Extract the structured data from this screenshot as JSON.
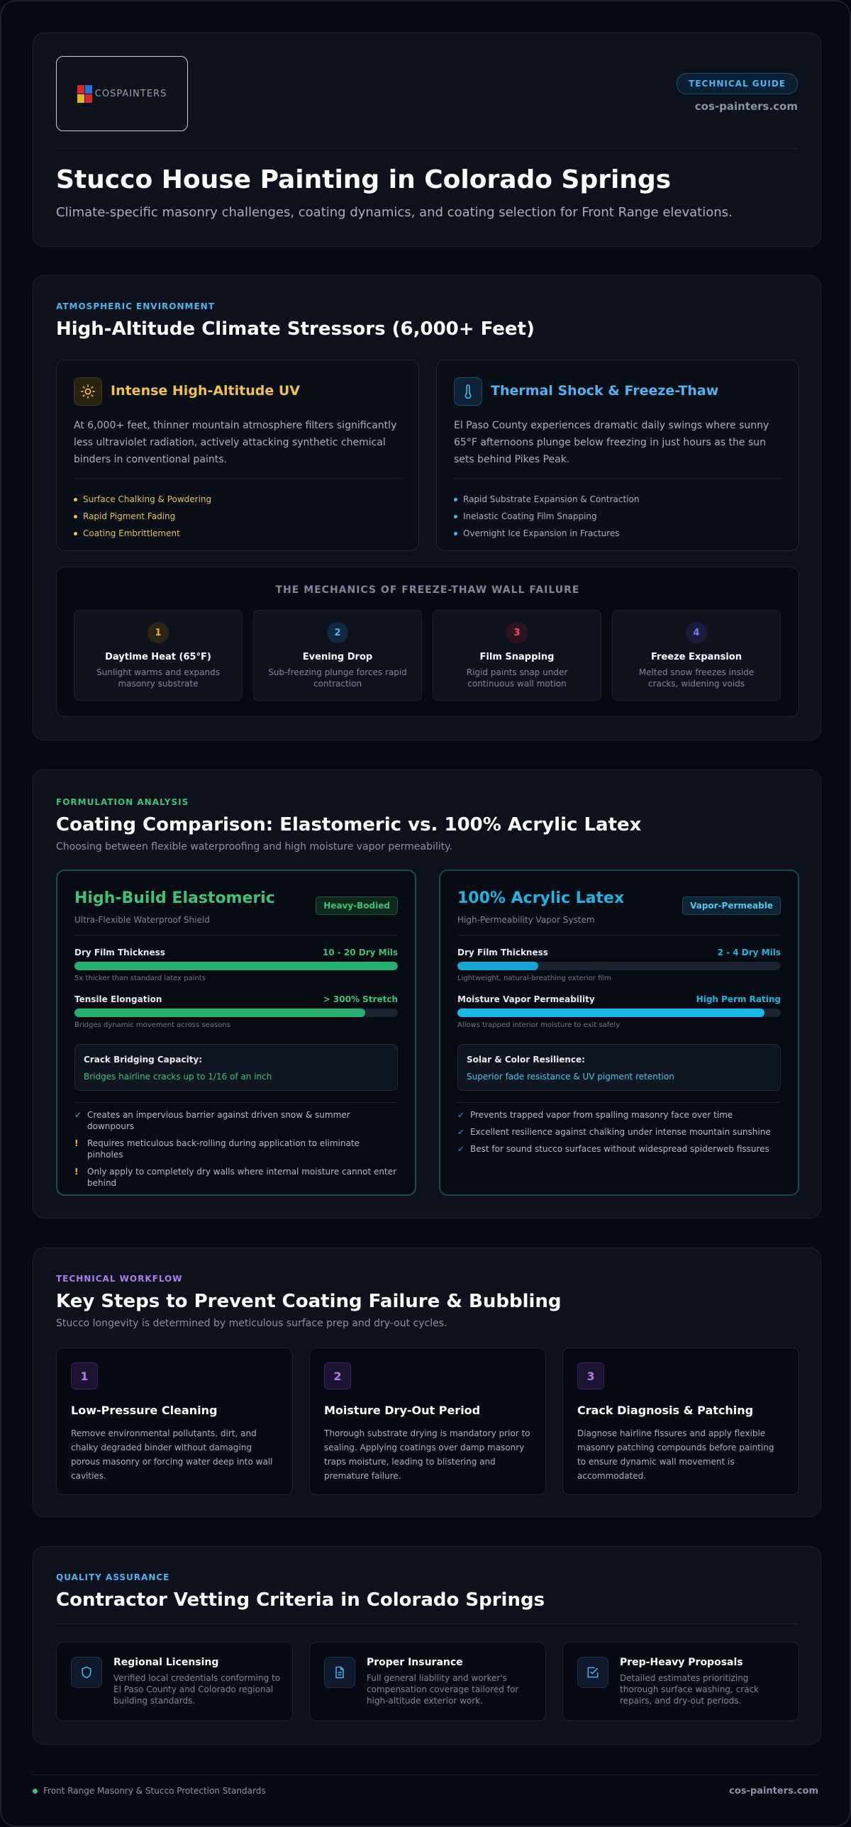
{
  "colors": {
    "uv": "#f2c14e",
    "thermal": "#4fb3f0",
    "elastomeric": "#3ec27a",
    "acrylic": "#1fb5e0",
    "workflow": "#b07cf0",
    "quality": "#4fb3f0",
    "warn": "#f2c14e"
  },
  "header": {
    "logo_text": "COSPAINTERS",
    "pill": "TECHNICAL GUIDE",
    "domain": "cos-painters.com",
    "title": "Stucco House Painting in Colorado Springs",
    "subtitle": "Climate-specific masonry challenges, coating dynamics, and coating selection for Front Range elevations."
  },
  "climate": {
    "eyebrow": "ATMOSPHERIC ENVIRONMENT",
    "title": "High-Altitude Climate Stressors (6,000+ Feet)",
    "uv": {
      "icon": "sun-icon",
      "title": "Intense High-Altitude UV",
      "desc": "At 6,000+ feet, thinner mountain atmosphere filters significantly less ultraviolet radiation, actively attacking synthetic chemical binders in conventional paints.",
      "bullets": [
        "Surface Chalking & Powdering",
        "Rapid Pigment Fading",
        "Coating Embrittlement"
      ]
    },
    "thermal": {
      "icon": "thermometer-icon",
      "title": "Thermal Shock & Freeze-Thaw",
      "desc": "El Paso County experiences dramatic daily swings where sunny 65°F afternoons plunge below freezing in just hours as the sun sets behind Pikes Peak.",
      "bullets": [
        "Rapid Substrate Expansion & Contraction",
        "Inelastic Coating Film Snapping",
        "Overnight Ice Expansion in Fractures"
      ]
    },
    "mechanics": {
      "title": "THE MECHANICS OF FREEZE-THAW WALL FAILURE",
      "steps": [
        {
          "num": "1",
          "title": "Daytime Heat (65°F)",
          "desc": "Sunlight warms and expands masonry substrate"
        },
        {
          "num": "2",
          "title": "Evening Drop",
          "desc": "Sub-freezing plunge forces rapid contraction"
        },
        {
          "num": "3",
          "title": "Film Snapping",
          "desc": "Rigid paints snap under continuous wall motion"
        },
        {
          "num": "4",
          "title": "Freeze Expansion",
          "desc": "Melted snow freezes inside cracks, widening voids"
        }
      ]
    }
  },
  "coatings": {
    "eyebrow": "FORMULATION ANALYSIS",
    "title": "Coating Comparison: Elastomeric vs. 100% Acrylic Latex",
    "subtitle": "Choosing between flexible waterproofing and high moisture vapor permeability.",
    "elastomeric": {
      "title": "High-Build Elastomeric",
      "subtitle": "Ultra-Flexible Waterproof Shield",
      "badge": "Heavy-Bodied",
      "m1": {
        "label": "Dry Film Thickness",
        "value": "10 - 20 Dry Mils",
        "note": "5x thicker than standard latex paints",
        "fill": 1.0
      },
      "m2": {
        "label": "Tensile Elongation",
        "value": "> 300% Stretch",
        "note": "Bridges dynamic movement across seasons",
        "fill": 0.9
      },
      "box_label": "Crack Bridging Capacity:",
      "box_value": "Bridges hairline cracks up to 1/16 of an inch",
      "notes": [
        {
          "mark": "✓",
          "kind": "ok",
          "text": "Creates an impervious barrier against driven snow & summer downpours"
        },
        {
          "mark": "!",
          "kind": "warn",
          "text": "Requires meticulous back-rolling during application to eliminate pinholes"
        },
        {
          "mark": "!",
          "kind": "warn",
          "text": "Only apply to completely dry walls where internal moisture cannot enter behind"
        }
      ]
    },
    "acrylic": {
      "title": "100% Acrylic Latex",
      "subtitle": "High-Permeability Vapor System",
      "badge": "Vapor-Permeable",
      "m1": {
        "label": "Dry Film Thickness",
        "value": "2 - 4 Dry Mils",
        "note": "Lightweight, natural-breathing exterior film",
        "fill": 0.25
      },
      "m2": {
        "label": "Moisture Vapor Permeability",
        "value": "High Perm Rating",
        "note": "Allows trapped interior moisture to exit safely",
        "fill": 0.95
      },
      "box_label": "Solar & Color Resilience:",
      "box_value": "Superior fade resistance & UV pigment retention",
      "notes": [
        {
          "mark": "✓",
          "kind": "ok",
          "text": "Prevents trapped vapor from spalling masonry face over time"
        },
        {
          "mark": "✓",
          "kind": "ok",
          "text": "Excellent resilience against chalking under intense mountain sunshine"
        },
        {
          "mark": "✓",
          "kind": "ok",
          "text": "Best for sound stucco surfaces without widespread spiderweb fissures"
        }
      ]
    }
  },
  "workflow": {
    "eyebrow": "TECHNICAL WORKFLOW",
    "title": "Key Steps to Prevent Coating Failure & Bubbling",
    "subtitle": "Stucco longevity is determined by meticulous surface prep and dry-out cycles.",
    "steps": [
      {
        "num": "1",
        "title": "Low-Pressure Cleaning",
        "desc": "Remove environmental pollutants, dirt, and chalky degraded binder without damaging porous masonry or forcing water deep into wall cavities."
      },
      {
        "num": "2",
        "title": "Moisture Dry-Out Period",
        "desc": "Thorough substrate drying is mandatory prior to sealing. Applying coatings over damp masonry traps moisture, leading to blistering and premature failure."
      },
      {
        "num": "3",
        "title": "Crack Diagnosis & Patching",
        "desc": "Diagnose hairline fissures and apply flexible masonry patching compounds before painting to ensure dynamic wall movement is accommodated."
      }
    ]
  },
  "vetting": {
    "eyebrow": "QUALITY ASSURANCE",
    "title": "Contractor Vetting Criteria in Colorado Springs",
    "items": [
      {
        "icon": "shield-icon",
        "title": "Regional Licensing",
        "desc": "Verified local credentials conforming to El Paso County and Colorado regional building standards."
      },
      {
        "icon": "document-icon",
        "title": "Proper Insurance",
        "desc": "Full general liability and worker's compensation coverage tailored for high-altitude exterior work."
      },
      {
        "icon": "checkbox-icon",
        "title": "Prep-Heavy Proposals",
        "desc": "Detailed estimates prioritizing thorough surface washing, crack repairs, and dry-out periods."
      }
    ]
  },
  "footer": {
    "left": "Front Range Masonry & Stucco Protection Standards",
    "right": "cos-painters.com"
  }
}
